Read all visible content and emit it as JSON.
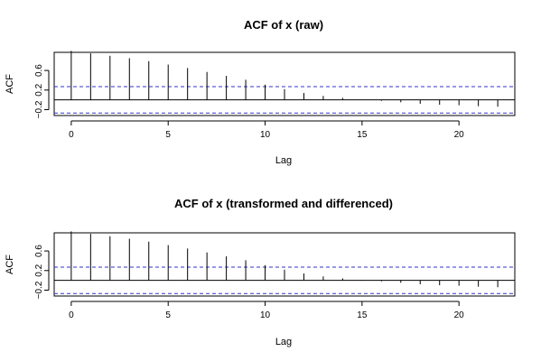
{
  "chart_data": [
    {
      "type": "bar",
      "title": "ACF of x (raw)",
      "xlabel": "Lag",
      "ylabel": "ACF",
      "x": [
        0,
        1,
        2,
        3,
        4,
        5,
        6,
        7,
        8,
        9,
        10,
        11,
        12,
        13,
        14,
        15,
        16,
        17,
        18,
        19,
        20,
        21,
        22
      ],
      "values": [
        1.0,
        0.95,
        0.9,
        0.85,
        0.79,
        0.72,
        0.65,
        0.57,
        0.49,
        0.41,
        0.31,
        0.22,
        0.14,
        0.08,
        0.04,
        0.0,
        -0.02,
        -0.05,
        -0.08,
        -0.1,
        -0.11,
        -0.13,
        -0.14
      ],
      "ci": 0.27,
      "xticks": [
        0,
        5,
        10,
        15,
        20
      ],
      "yticks": [
        -0.2,
        0.2,
        0.6
      ],
      "xlim": [
        -0.88,
        22.88
      ],
      "ylim": [
        -0.32,
        0.97
      ],
      "grid": false
    },
    {
      "type": "bar",
      "title": "ACF of x (transformed and differenced)",
      "xlabel": "Lag",
      "ylabel": "ACF",
      "x": [
        0,
        1,
        2,
        3,
        4,
        5,
        6,
        7,
        8,
        9,
        10,
        11,
        12,
        13,
        14,
        15,
        16,
        17,
        18,
        19,
        20,
        21,
        22
      ],
      "values": [
        1.0,
        0.95,
        0.9,
        0.85,
        0.79,
        0.72,
        0.65,
        0.57,
        0.49,
        0.41,
        0.31,
        0.22,
        0.14,
        0.08,
        0.04,
        0.01,
        -0.02,
        -0.05,
        -0.08,
        -0.1,
        -0.11,
        -0.13,
        -0.14
      ],
      "ci": 0.27,
      "xticks": [
        0,
        5,
        10,
        15,
        20
      ],
      "yticks": [
        -0.2,
        0.2,
        0.6
      ],
      "xlim": [
        -0.88,
        22.88
      ],
      "ylim": [
        -0.32,
        0.97
      ],
      "grid": false
    }
  ]
}
